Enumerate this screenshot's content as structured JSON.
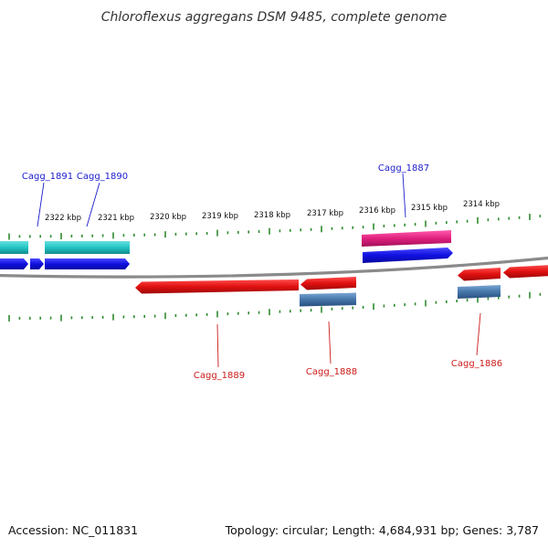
{
  "title": "Chloroflexus aggregans DSM 9485, complete genome",
  "footer": {
    "accession": "Accession: NC_011831",
    "topology": "Topology: circular; Length: 4,684,931 bp; Genes: 3,787"
  },
  "colors": {
    "backbone": "#888888",
    "tick": "#2e8b2e",
    "forward_label": "#1a1acc",
    "reverse_label": "#cc1a1a",
    "cyan": "#33cccc",
    "blue": "#1a1ae6",
    "magenta": "#e62e8a",
    "red": "#e61a1a",
    "steel": "#4a7fb5"
  },
  "scale": {
    "unit": "kbp",
    "labels": [
      "2322 kbp",
      "2321 kbp",
      "2320 kbp",
      "2319 kbp",
      "2318 kbp",
      "2317 kbp",
      "2316 kbp",
      "2315 kbp",
      "2314 kbp"
    ]
  },
  "genes": {
    "forward": [
      {
        "label": "Cagg_1891"
      },
      {
        "label": "Cagg_1890"
      },
      {
        "label": "Cagg_1887"
      }
    ],
    "reverse": [
      {
        "label": "Cagg_1889"
      },
      {
        "label": "Cagg_1888"
      },
      {
        "label": "Cagg_1886"
      }
    ]
  }
}
